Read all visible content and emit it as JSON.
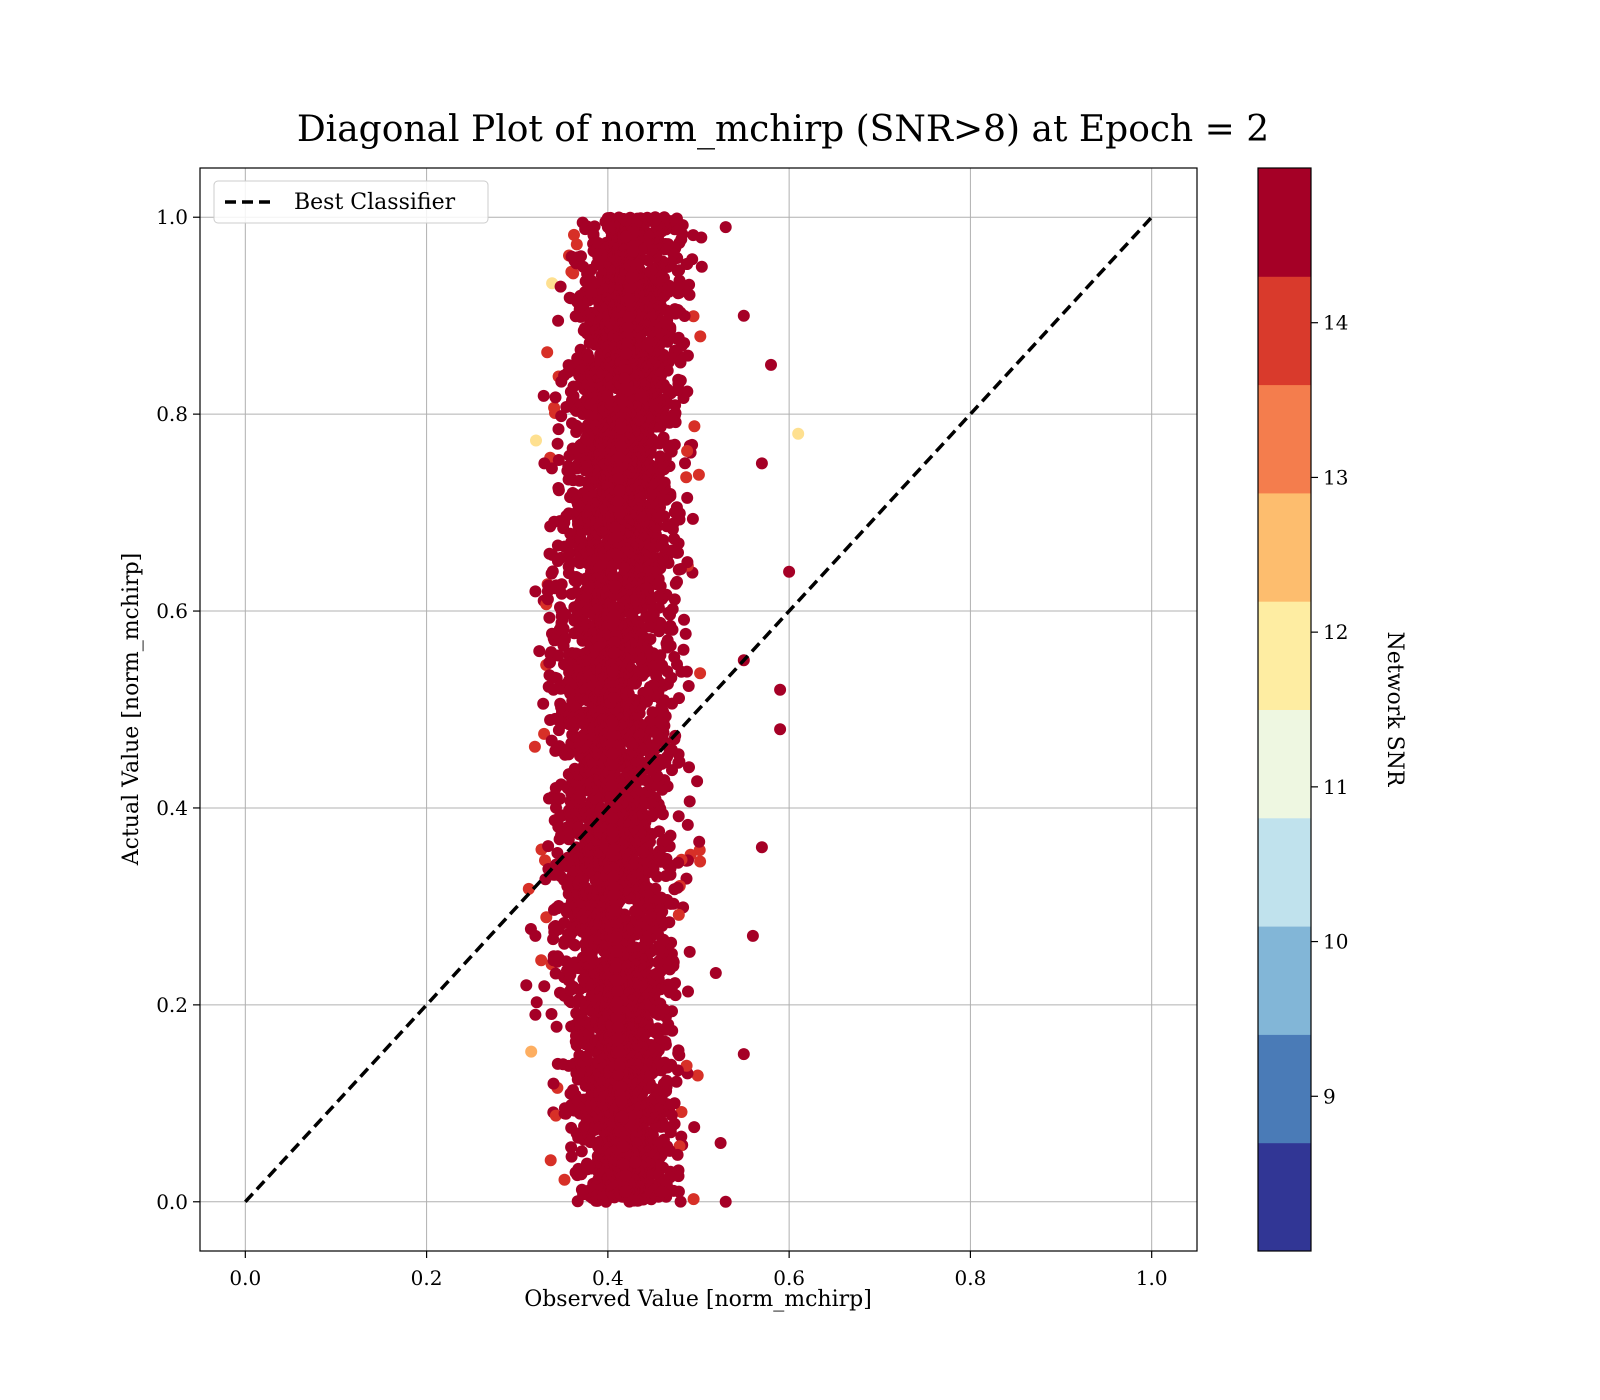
{
  "chart_data": {
    "type": "scatter",
    "title": "Diagonal Plot of norm_mchirp (SNR>8) at Epoch = 2",
    "xlabel": "Observed Value [norm_mchirp]",
    "ylabel": "Actual Value [norm_mchirp]",
    "xlim": [
      -0.05,
      1.05
    ],
    "ylim": [
      -0.05,
      1.05
    ],
    "x_ticks": [
      "0.0",
      "0.2",
      "0.4",
      "0.6",
      "0.8",
      "1.0"
    ],
    "y_ticks": [
      "0.0",
      "0.2",
      "0.4",
      "0.6",
      "0.8",
      "1.0"
    ],
    "grid": true,
    "legend": {
      "position": "upper-left",
      "entries": [
        "Best Classifier"
      ]
    },
    "reference_line": {
      "label": "Best Classifier",
      "x": [
        0.0,
        1.0
      ],
      "y": [
        0.0,
        1.0
      ],
      "style": "dashed",
      "color": "#000000"
    },
    "scatter_summary": {
      "x_range_observed": [
        0.31,
        0.61
      ],
      "y_range_actual": [
        0.0,
        1.0
      ],
      "dense_core_x": [
        0.37,
        0.47
      ],
      "note_color": "points colored by Network SNR"
    },
    "sample_points": [
      [
        0.4,
        0.99
      ],
      [
        0.42,
        0.98
      ],
      [
        0.53,
        0.99
      ],
      [
        0.61,
        0.78
      ],
      [
        0.6,
        0.64
      ],
      [
        0.59,
        0.52
      ],
      [
        0.59,
        0.48
      ],
      [
        0.31,
        0.22
      ],
      [
        0.32,
        0.19
      ],
      [
        0.53,
        0.0
      ],
      [
        0.46,
        0.01
      ],
      [
        0.58,
        0.85
      ],
      [
        0.57,
        0.75
      ],
      [
        0.33,
        0.75
      ],
      [
        0.32,
        0.62
      ],
      [
        0.57,
        0.36
      ],
      [
        0.56,
        0.27
      ],
      [
        0.55,
        0.15
      ],
      [
        0.34,
        0.12
      ],
      [
        0.43,
        0.04
      ],
      [
        0.36,
        0.96
      ],
      [
        0.55,
        0.9
      ],
      [
        0.34,
        0.52
      ],
      [
        0.32,
        0.27
      ],
      [
        0.55,
        0.55
      ]
    ],
    "colorbar": {
      "label": "Network SNR",
      "vmin": 8,
      "vmax": 15,
      "ticks": [
        "9",
        "10",
        "11",
        "12",
        "13",
        "14"
      ],
      "tick_values": [
        9,
        10,
        11,
        12,
        13,
        14
      ],
      "colors": [
        "#313695",
        "#4575b4",
        "#74add1",
        "#abd9e9",
        "#e0f3f8",
        "#fee090",
        "#fdae61",
        "#f46d43",
        "#d73027",
        "#a50026"
      ],
      "band_colors": [
        "#313695",
        "#4a7bb7",
        "#82b6d7",
        "#c0e2ed",
        "#eef7e1",
        "#feeda2",
        "#fdbd6e",
        "#f47d4d",
        "#d93a2c",
        "#a50026"
      ]
    }
  }
}
